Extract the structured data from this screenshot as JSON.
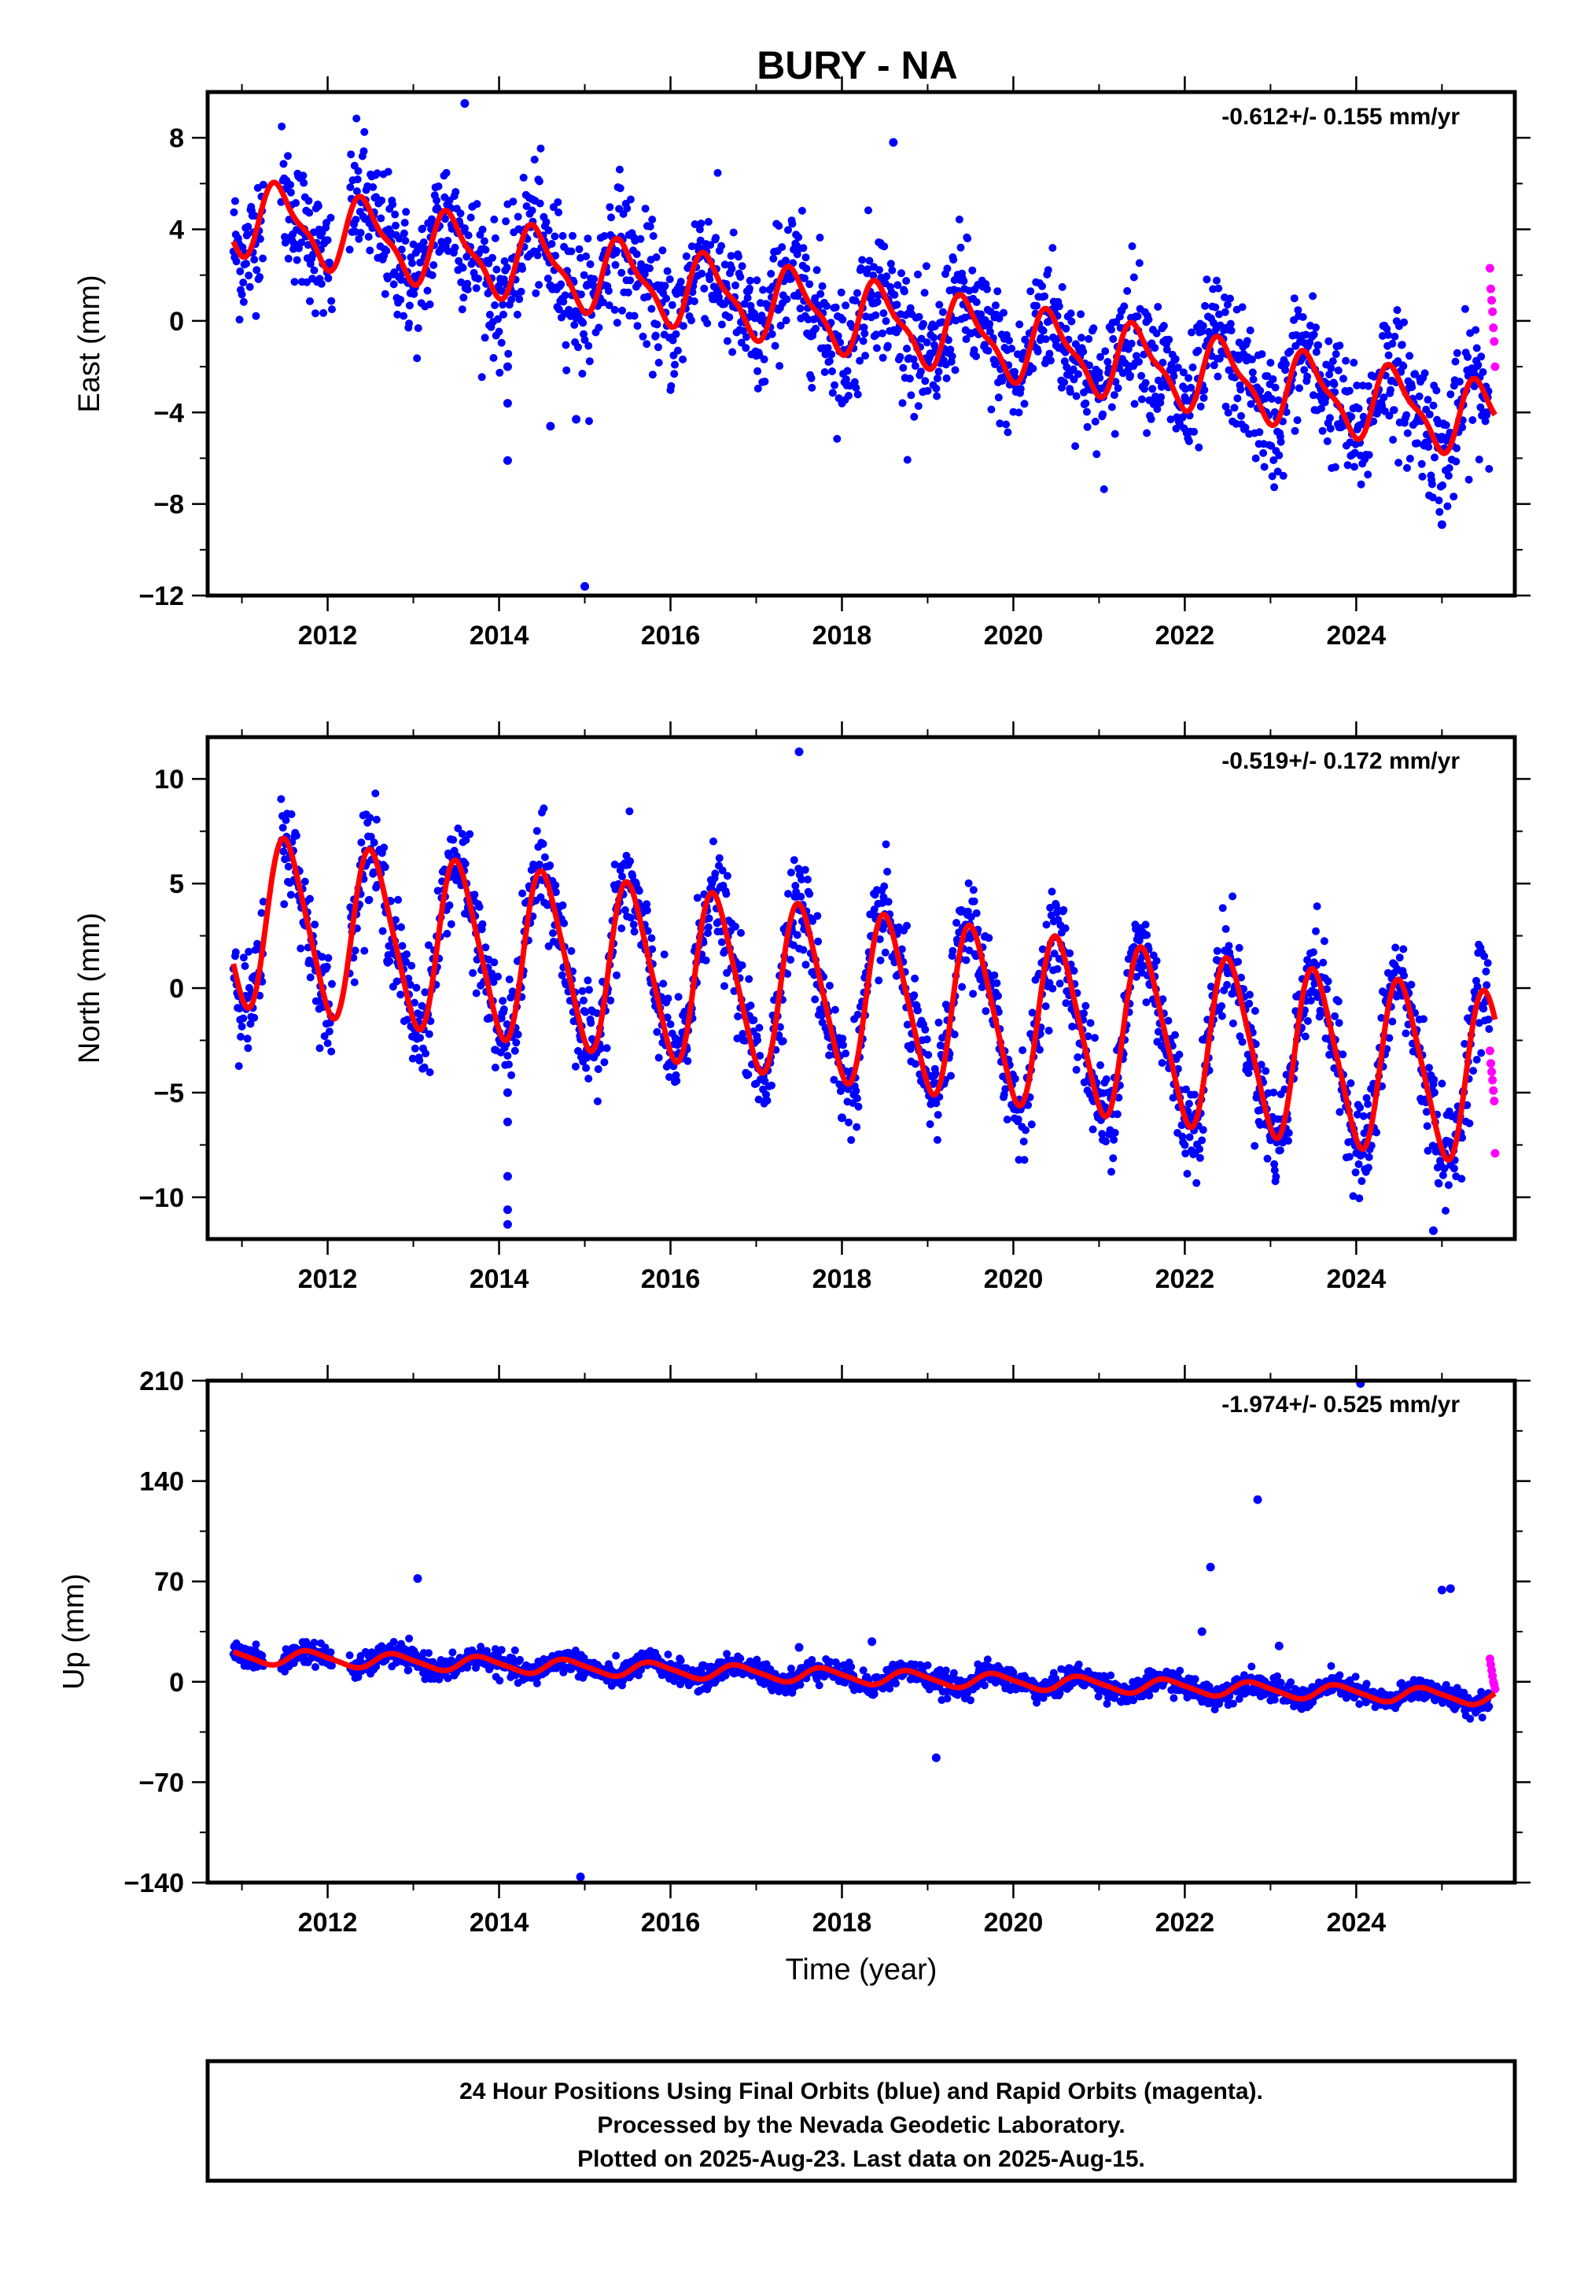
{
  "title": "BURY - NA",
  "colors": {
    "final": "#0000ff",
    "rapid": "#ff00ff",
    "fit": "#ff0000",
    "frame": "#000000"
  },
  "footer": {
    "lines": [
      "24 Hour Positions Using Final Orbits (blue) and Rapid Orbits (magenta).",
      "Processed by the Nevada Geodetic Laboratory.",
      "Plotted on 2025-Aug-23. Last data on 2025-Aug-15."
    ]
  },
  "chart_data": [
    {
      "type": "scatter",
      "ylabel": "East (mm)",
      "xlabel": "",
      "rate": "-0.612+/- 0.155 mm/yr",
      "xlim": [
        2010.6,
        2025.85
      ],
      "ylim": [
        -12,
        10
      ],
      "xticks": [
        2012,
        2014,
        2016,
        2018,
        2020,
        2022,
        2024
      ],
      "yticks": [
        -12,
        -8,
        -4,
        0,
        4,
        8
      ],
      "ytick_labels": [
        "−12",
        "−8",
        "−4",
        "0",
        "4",
        "8"
      ],
      "series": [
        {
          "role": "final",
          "x_start": 2010.9,
          "x_end": 2025.55,
          "offset_y": 4.6,
          "slope_mm_yr": -0.612,
          "annual_amp": 1.5,
          "annual_phase": 0.2,
          "semiannual_amp": 0.5,
          "scatter_mm": 1.4
        },
        {
          "role": "rapid",
          "x": [
            2025.56,
            2025.57,
            2025.58,
            2025.59,
            2025.6,
            2025.61,
            2025.62
          ],
          "y": [
            2.3,
            1.4,
            0.9,
            0.4,
            -0.3,
            -0.9,
            -2.0
          ]
        },
        {
          "role": "outliers",
          "x": [
            2014.1,
            2014.1,
            2014.1,
            2014.9,
            2015.0,
            2018.6,
            2013.6,
            2014.6,
            2025.0
          ],
          "y": [
            -2.0,
            -3.6,
            -6.1,
            -4.3,
            -11.6,
            7.8,
            9.5,
            -4.6,
            -8.9
          ]
        }
      ]
    },
    {
      "type": "scatter",
      "ylabel": "North (mm)",
      "xlabel": "",
      "rate": "-0.519+/- 0.172 mm/yr",
      "xlim": [
        2010.6,
        2025.85
      ],
      "ylim": [
        -12,
        12
      ],
      "xticks": [
        2012,
        2014,
        2016,
        2018,
        2020,
        2022,
        2024
      ],
      "yticks": [
        -10,
        -5,
        0,
        5,
        10
      ],
      "ytick_labels": [
        "−10",
        "−5",
        "0",
        "5",
        "10"
      ],
      "series": [
        {
          "role": "final",
          "x_start": 2010.9,
          "x_end": 2025.55,
          "offset_y": 3.3,
          "slope_mm_yr": -0.519,
          "annual_amp": 4.0,
          "annual_phase": 0.28,
          "semiannual_amp": 0.6,
          "scatter_mm": 1.2
        },
        {
          "role": "rapid",
          "x": [
            2025.56,
            2025.57,
            2025.58,
            2025.59,
            2025.6,
            2025.61,
            2025.62
          ],
          "y": [
            -3.0,
            -3.6,
            -4.0,
            -4.4,
            -4.9,
            -5.4,
            -7.9
          ]
        },
        {
          "role": "outliers",
          "x": [
            2014.1,
            2014.1,
            2014.1,
            2014.1,
            2014.1,
            2017.5,
            2024.9,
            2018.0
          ],
          "y": [
            -5.0,
            -6.4,
            -9.0,
            -10.6,
            -11.3,
            11.3,
            -11.6,
            -6.2
          ]
        }
      ]
    },
    {
      "type": "scatter",
      "ylabel": "Up (mm)",
      "xlabel": "Time (year)",
      "rate": "-1.974+/- 0.525 mm/yr",
      "xlim": [
        2010.6,
        2025.85
      ],
      "ylim": [
        -140,
        210
      ],
      "xticks": [
        2012,
        2014,
        2016,
        2018,
        2020,
        2022,
        2024
      ],
      "yticks": [
        -140,
        -70,
        0,
        70,
        140,
        210
      ],
      "ytick_labels": [
        "−140",
        "−70",
        "0",
        "70",
        "140",
        "210"
      ],
      "series": [
        {
          "role": "final",
          "x_start": 2010.9,
          "x_end": 2025.55,
          "offset_y": 18,
          "slope_mm_yr": -1.974,
          "annual_amp": 5.0,
          "annual_phase": 0.55,
          "semiannual_amp": 1.0,
          "scatter_mm": 4.0
        },
        {
          "role": "rapid",
          "x": [
            2025.56,
            2025.57,
            2025.58,
            2025.59,
            2025.6,
            2025.61,
            2025.62
          ],
          "y": [
            16,
            12,
            8,
            4,
            0,
            -2,
            -5
          ]
        },
        {
          "role": "outliers",
          "x": [
            2013.05,
            2014.95,
            2019.1,
            2022.2,
            2022.3,
            2022.85,
            2024.05,
            2023.1,
            2025.0,
            2025.1,
            2018.35,
            2017.5
          ],
          "y": [
            72,
            -136,
            -53,
            35,
            80,
            127,
            208,
            25,
            64,
            65,
            28,
            24
          ]
        }
      ]
    }
  ]
}
